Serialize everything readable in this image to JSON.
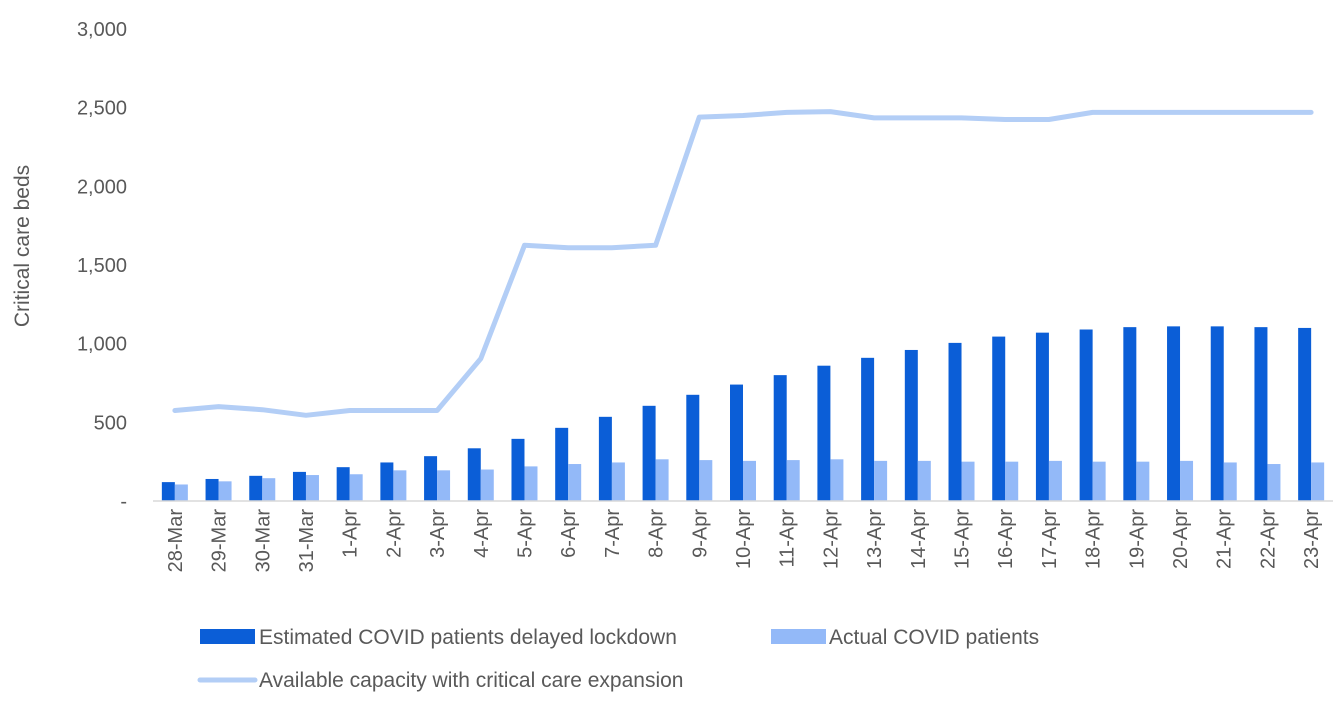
{
  "chart_data": {
    "type": "bar",
    "ylabel": "Critical care beds",
    "xlabel": "",
    "ylim": [
      0,
      3000
    ],
    "yticks": [
      {
        "value": 0,
        "label": "-"
      },
      {
        "value": 500,
        "label": "500"
      },
      {
        "value": 1000,
        "label": "1,000"
      },
      {
        "value": 1500,
        "label": "1,500"
      },
      {
        "value": 2000,
        "label": "2,000"
      },
      {
        "value": 2500,
        "label": "2,500"
      },
      {
        "value": 3000,
        "label": "3,000"
      }
    ],
    "categories": [
      "28-Mar",
      "29-Mar",
      "30-Mar",
      "31-Mar",
      "1-Apr",
      "2-Apr",
      "3-Apr",
      "4-Apr",
      "5-Apr",
      "6-Apr",
      "7-Apr",
      "8-Apr",
      "9-Apr",
      "10-Apr",
      "11-Apr",
      "12-Apr",
      "13-Apr",
      "14-Apr",
      "15-Apr",
      "16-Apr",
      "17-Apr",
      "18-Apr",
      "19-Apr",
      "20-Apr",
      "21-Apr",
      "22-Apr",
      "23-Apr"
    ],
    "series": [
      {
        "name": "Estimated COVID patients delayed lockdown",
        "kind": "bar",
        "color": "#0B5ED7",
        "values": [
          120,
          140,
          160,
          185,
          215,
          245,
          285,
          335,
          395,
          465,
          535,
          605,
          675,
          740,
          800,
          860,
          910,
          960,
          1005,
          1045,
          1070,
          1090,
          1105,
          1110,
          1110,
          1105,
          1100
        ]
      },
      {
        "name": "Actual COVID patients",
        "kind": "bar",
        "color": "#93B9F8",
        "values": [
          105,
          125,
          145,
          165,
          170,
          195,
          195,
          200,
          220,
          235,
          245,
          265,
          260,
          255,
          260,
          265,
          255,
          255,
          250,
          250,
          255,
          250,
          250,
          255,
          245,
          235,
          245
        ]
      },
      {
        "name": "Available capacity with critical care expansion",
        "kind": "line",
        "color": "#B3CEF6",
        "values": [
          575,
          600,
          580,
          545,
          575,
          575,
          575,
          905,
          1625,
          1610,
          1610,
          1625,
          2440,
          2450,
          2470,
          2475,
          2435,
          2435,
          2435,
          2425,
          2425,
          2470,
          2470,
          2470,
          2470,
          2470,
          2470
        ]
      }
    ],
    "legend_position": "bottom",
    "grid": false
  }
}
